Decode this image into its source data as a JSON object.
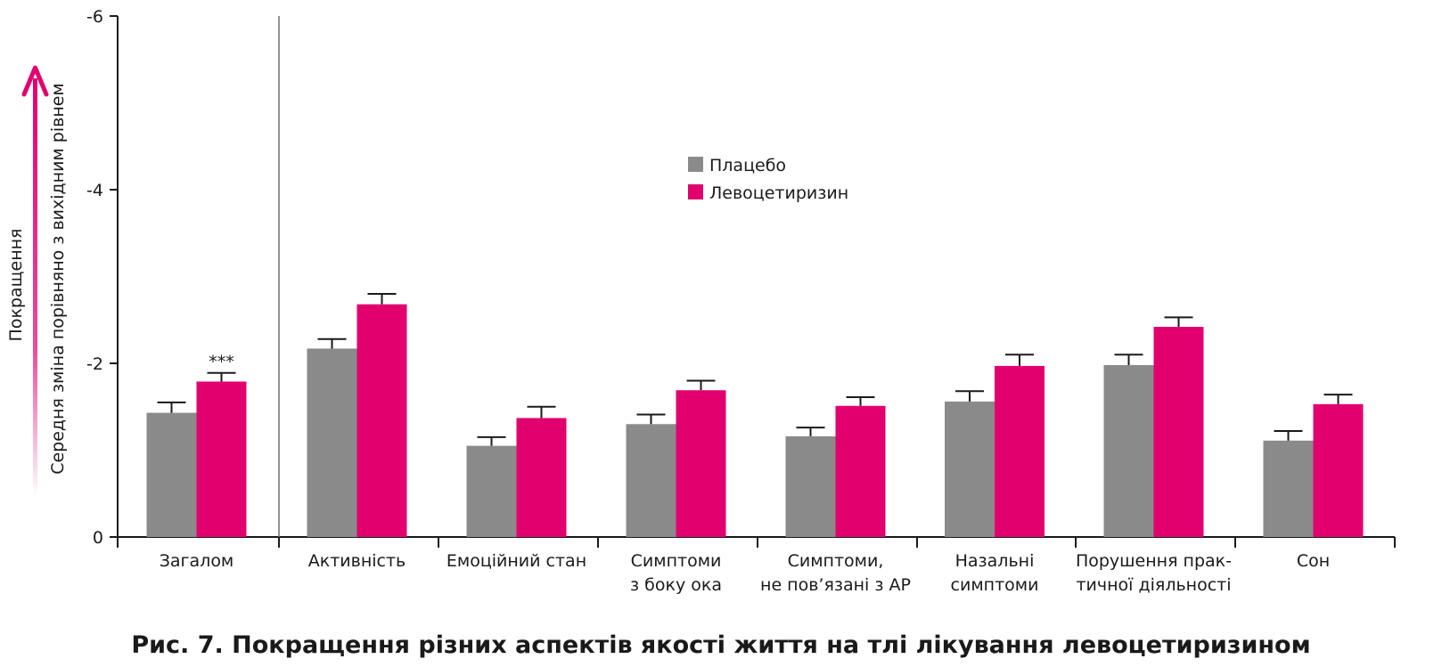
{
  "caption": "Рис. 7. Покращення різних аспектів якості життя на тлі лікування левоцетиризином",
  "colors": {
    "placebo": "#8a8a8a",
    "levocetirizine": "#e2006f",
    "axis": "#1a1a1a",
    "arrow": "#e2006f"
  },
  "chart_data": {
    "type": "bar",
    "title": "",
    "xlabel": "",
    "ylabel": "Середня зміна порівняно з вихідним рівнем",
    "arrow_label": "Покращення",
    "y_inverted": true,
    "ylim": [
      0,
      -6
    ],
    "yticks": [
      "-6",
      "-4",
      "-2",
      "0"
    ],
    "ytick_values": [
      -6,
      -4,
      -2,
      0
    ],
    "legend_position": "center-top",
    "grid": false,
    "categories": [
      [
        "Загалом"
      ],
      [
        "Активність"
      ],
      [
        "Емоційний стан"
      ],
      [
        "Симптоми",
        "з боку ока"
      ],
      [
        "Симптоми,",
        "не пов’язані з АР"
      ],
      [
        "Назальні",
        "симптоми"
      ],
      [
        "Порушення прак-",
        "тичної діяльності"
      ],
      [
        "Сон"
      ]
    ],
    "series": [
      {
        "name": "Плацебо",
        "color": "#8a8a8a",
        "values": [
          -1.43,
          -2.17,
          -1.05,
          -1.3,
          -1.16,
          -1.56,
          -1.98,
          -1.11
        ],
        "error": [
          0.12,
          0.11,
          0.1,
          0.11,
          0.1,
          0.12,
          0.12,
          0.11
        ]
      },
      {
        "name": "Левоцетиризин",
        "color": "#e2006f",
        "values": [
          -1.79,
          -2.68,
          -1.37,
          -1.69,
          -1.51,
          -1.97,
          -2.42,
          -1.53
        ],
        "error": [
          0.1,
          0.12,
          0.13,
          0.11,
          0.1,
          0.13,
          0.11,
          0.11
        ]
      }
    ],
    "annotations": [
      {
        "category_index": 0,
        "series_index": 1,
        "text": "***"
      }
    ]
  }
}
